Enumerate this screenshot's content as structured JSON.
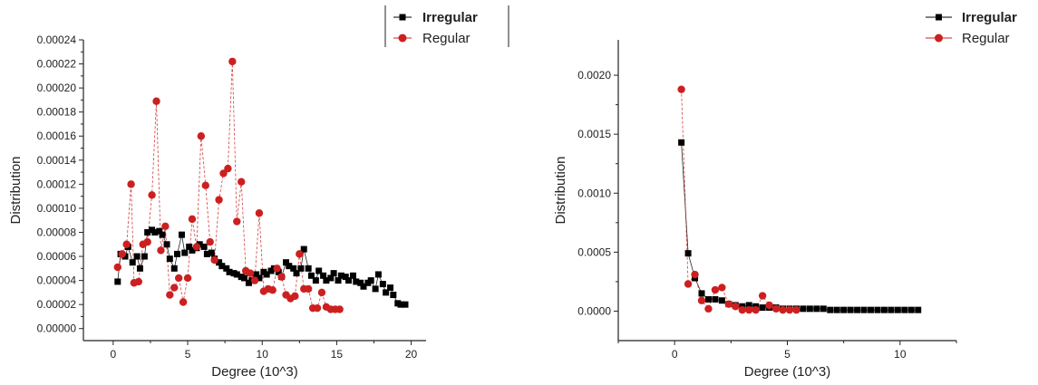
{
  "chart_data": [
    {
      "type": "scatter",
      "xlabel": "Degree (10^3)",
      "ylabel": "Distribution",
      "xlim": [
        -2,
        21
      ],
      "ylim": [
        -1e-05,
        0.00024
      ],
      "xticks": [
        0,
        5,
        10,
        15,
        20
      ],
      "xtick_labels": [
        "0",
        "5",
        "10",
        "15",
        "20"
      ],
      "yticks": [
        0,
        2e-05,
        4e-05,
        6e-05,
        8e-05,
        0.0001,
        0.00012,
        0.00014,
        0.00016,
        0.00018,
        0.0002,
        0.00022,
        0.00024
      ],
      "ytick_labels": [
        "0.00000",
        "0.00002",
        "0.00004",
        "0.00006",
        "0.00008",
        "0.00010",
        "0.00012",
        "0.00014",
        "0.00016",
        "0.00018",
        "0.00020",
        "0.00022",
        "0.00024"
      ],
      "legend": {
        "placement": "top-right",
        "entries": [
          "Irregular",
          "Regular"
        ]
      },
      "series": [
        {
          "name": "Irregular",
          "marker": "square",
          "color": "#000000",
          "x": [
            0.3,
            0.5,
            0.8,
            1.0,
            1.3,
            1.6,
            1.8,
            2.1,
            2.3,
            2.6,
            2.8,
            3.1,
            3.3,
            3.6,
            3.8,
            4.1,
            4.3,
            4.6,
            4.8,
            5.1,
            5.3,
            5.6,
            5.8,
            6.1,
            6.3,
            6.6,
            6.8,
            7.1,
            7.3,
            7.6,
            7.8,
            8.1,
            8.3,
            8.6,
            8.8,
            9.1,
            9.3,
            9.6,
            9.8,
            10.1,
            10.3,
            10.6,
            10.8,
            11.1,
            11.3,
            11.6,
            11.8,
            12.1,
            12.3,
            12.6,
            12.8,
            13.1,
            13.3,
            13.6,
            13.8,
            14.1,
            14.3,
            14.6,
            14.8,
            15.1,
            15.3,
            15.6,
            15.8,
            16.1,
            16.3,
            16.6,
            16.8,
            17.1,
            17.3,
            17.6,
            17.8,
            18.1,
            18.3,
            18.6,
            18.8,
            19.1,
            19.3,
            19.6
          ],
          "y": [
            3.9e-05,
            6.2e-05,
            6e-05,
            6.8e-05,
            5.5e-05,
            6e-05,
            5e-05,
            6e-05,
            8e-05,
            8.2e-05,
            8e-05,
            8.1e-05,
            7.8e-05,
            7e-05,
            5.8e-05,
            5e-05,
            6.2e-05,
            7.8e-05,
            6.3e-05,
            6.8e-05,
            6.5e-05,
            6.7e-05,
            7e-05,
            6.8e-05,
            6.2e-05,
            6.3e-05,
            5.8e-05,
            5.5e-05,
            5.2e-05,
            5e-05,
            4.7e-05,
            4.6e-05,
            4.5e-05,
            4.3e-05,
            4.2e-05,
            3.8e-05,
            4e-05,
            4.5e-05,
            4.2e-05,
            4.7e-05,
            4.5e-05,
            4.8e-05,
            5e-05,
            4.7e-05,
            4.3e-05,
            5.5e-05,
            5.2e-05,
            5e-05,
            4.6e-05,
            5e-05,
            6.6e-05,
            5e-05,
            4.4e-05,
            4e-05,
            4.8e-05,
            4.4e-05,
            4e-05,
            4.2e-05,
            4.6e-05,
            4e-05,
            4.4e-05,
            4.3e-05,
            4e-05,
            4.4e-05,
            3.9e-05,
            3.8e-05,
            3.5e-05,
            3.8e-05,
            4e-05,
            3.3e-05,
            4.5e-05,
            3.7e-05,
            3e-05,
            3.4e-05,
            2.8e-05,
            2.1e-05,
            2e-05,
            2e-05
          ]
        },
        {
          "name": "Regular",
          "marker": "circle",
          "color": "#cc2020",
          "x": [
            0.3,
            0.6,
            0.9,
            1.2,
            1.4,
            1.7,
            2.0,
            2.3,
            2.6,
            2.9,
            3.2,
            3.5,
            3.8,
            4.1,
            4.4,
            4.7,
            5.0,
            5.3,
            5.6,
            5.9,
            6.2,
            6.5,
            6.8,
            7.1,
            7.4,
            7.7,
            8.0,
            8.3,
            8.6,
            8.9,
            9.2,
            9.5,
            9.8,
            10.1,
            10.4,
            10.7,
            11.0,
            11.3,
            11.6,
            11.9,
            12.2,
            12.5,
            12.8,
            13.1,
            13.4,
            13.7,
            14.0,
            14.3,
            14.6,
            14.9,
            15.2
          ],
          "y": [
            5.1e-05,
            6.2e-05,
            7e-05,
            0.00012,
            3.8e-05,
            3.9e-05,
            7e-05,
            7.2e-05,
            0.000111,
            0.000189,
            6.5e-05,
            8.5e-05,
            2.8e-05,
            3.4e-05,
            4.2e-05,
            2.2e-05,
            4.2e-05,
            9.1e-05,
            6.8e-05,
            0.00016,
            0.000119,
            7.2e-05,
            5.7e-05,
            0.000107,
            0.000129,
            0.000133,
            0.000222,
            8.9e-05,
            0.000122,
            4.8e-05,
            4.6e-05,
            4e-05,
            9.6e-05,
            3.1e-05,
            3.3e-05,
            3.2e-05,
            5e-05,
            4.3e-05,
            2.8e-05,
            2.5e-05,
            2.7e-05,
            6.2e-05,
            3.3e-05,
            3.3e-05,
            1.7e-05,
            1.7e-05,
            3e-05,
            1.8e-05,
            1.6e-05,
            1.6e-05,
            1.6e-05
          ]
        }
      ]
    },
    {
      "type": "scatter",
      "xlabel": "Degree (10^3)",
      "ylabel": "Distribution",
      "xlim": [
        -2.5,
        12.5
      ],
      "ylim": [
        -0.00025,
        0.0023
      ],
      "xticks": [
        0,
        5,
        10
      ],
      "xtick_labels": [
        "0",
        "5",
        "10"
      ],
      "yticks": [
        0,
        0.0005,
        0.001,
        0.0015,
        0.002
      ],
      "ytick_labels": [
        "0.0000",
        "0.0005",
        "0.0010",
        "0.0015",
        "0.0020"
      ],
      "legend": {
        "placement": "top-right",
        "entries": [
          "Irregular",
          "Regular"
        ]
      },
      "series": [
        {
          "name": "Irregular",
          "marker": "square",
          "color": "#000000",
          "x": [
            0.3,
            0.6,
            0.9,
            1.2,
            1.5,
            1.8,
            2.1,
            2.4,
            2.7,
            3.0,
            3.3,
            3.6,
            3.9,
            4.2,
            4.5,
            4.8,
            5.1,
            5.4,
            5.7,
            6.0,
            6.3,
            6.6,
            6.9,
            7.2,
            7.5,
            7.8,
            8.1,
            8.4,
            8.7,
            9.0,
            9.3,
            9.6,
            9.9,
            10.2,
            10.5,
            10.8
          ],
          "y": [
            0.00143,
            0.00049,
            0.00028,
            0.00015,
            0.0001,
            0.0001,
            9e-05,
            6e-05,
            5e-05,
            4e-05,
            5e-05,
            4e-05,
            3e-05,
            3e-05,
            3e-05,
            2e-05,
            2e-05,
            2e-05,
            2e-05,
            2e-05,
            2e-05,
            2e-05,
            1e-05,
            1e-05,
            1e-05,
            1e-05,
            1e-05,
            1e-05,
            1e-05,
            1e-05,
            1e-05,
            1e-05,
            1e-05,
            1e-05,
            1e-05,
            1e-05
          ]
        },
        {
          "name": "Regular",
          "marker": "circle",
          "color": "#cc2020",
          "x": [
            0.3,
            0.6,
            0.9,
            1.2,
            1.5,
            1.8,
            2.1,
            2.4,
            2.7,
            3.0,
            3.3,
            3.6,
            3.9,
            4.2,
            4.5,
            4.8,
            5.1,
            5.4
          ],
          "y": [
            0.00188,
            0.00023,
            0.00031,
            9e-05,
            2e-05,
            0.00018,
            0.0002,
            6e-05,
            4e-05,
            1e-05,
            1e-05,
            1e-05,
            0.00013,
            5e-05,
            2e-05,
            1e-05,
            1e-05,
            1e-05
          ]
        }
      ]
    }
  ]
}
